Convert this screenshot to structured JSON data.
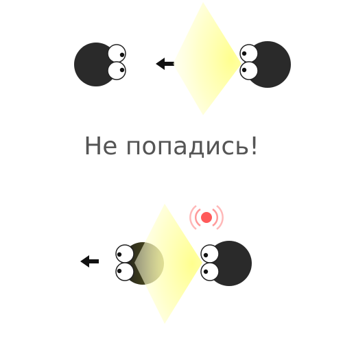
{
  "tutorial": {
    "caption": "Не попадись!"
  },
  "colors": {
    "character": "#2a2a2a",
    "eye_white": "#ffffff",
    "eye_outline": "#222222",
    "pupil": "#111111",
    "arrow": "#111111",
    "light_core": "#ffff99",
    "light_edge": "#fffff0",
    "alarm_dot": "#ff5a5a",
    "alarm_ring": "#ff9a9a",
    "caption": "#555555"
  },
  "icons": {
    "arrow": "arrow-left-icon",
    "alarm": "alarm-signal-icon",
    "flashlight": "flashlight-beam"
  }
}
